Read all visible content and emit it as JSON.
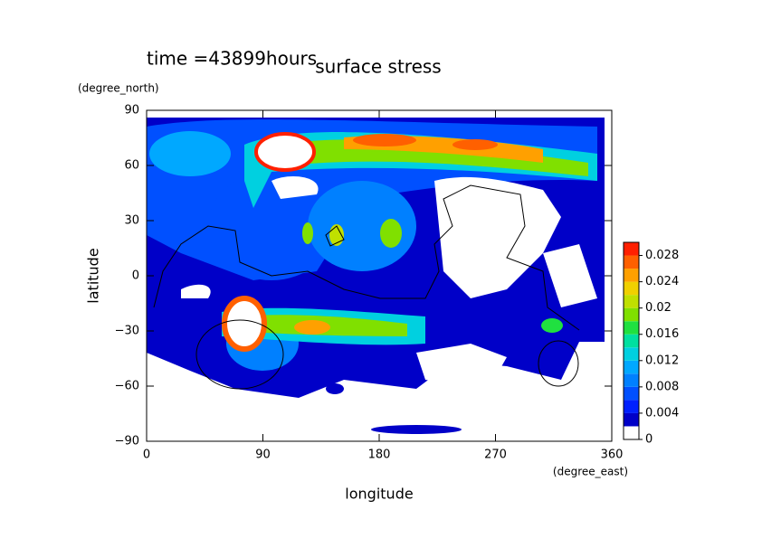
{
  "chart_data": {
    "type": "contour",
    "title": "surface stress",
    "subtitle": "time =43899hours",
    "x_label": "longitude",
    "x_units": "(degree_east)",
    "y_label": "latitude",
    "y_units": "(degree_north)",
    "xlim": [
      0,
      360
    ],
    "xticks": [
      0,
      90,
      180,
      270,
      360
    ],
    "ylim": [
      -90,
      90
    ],
    "yticks": [
      {
        "value": -90,
        "label": "−90"
      },
      {
        "value": -60,
        "label": "−60"
      },
      {
        "value": -30,
        "label": "−30"
      },
      0,
      30,
      60,
      90
    ],
    "colorbar": {
      "levels": [
        0,
        0.002,
        0.004,
        0.006,
        0.008,
        0.01,
        0.012,
        0.014,
        0.016,
        0.018,
        0.02,
        0.022,
        0.024,
        0.026,
        0.028,
        0.03
      ],
      "colors": [
        "#ffffff",
        "#0000c8",
        "#0020ff",
        "#0050ff",
        "#0080ff",
        "#00a8ff",
        "#00d0e0",
        "#00e0a0",
        "#20e040",
        "#80e000",
        "#c0e000",
        "#f0d000",
        "#ffa000",
        "#ff6000",
        "#ff2000"
      ],
      "ticks": [
        0,
        0.004,
        0.008,
        0.012,
        0.016,
        0.02,
        0.024,
        0.028
      ]
    }
  }
}
